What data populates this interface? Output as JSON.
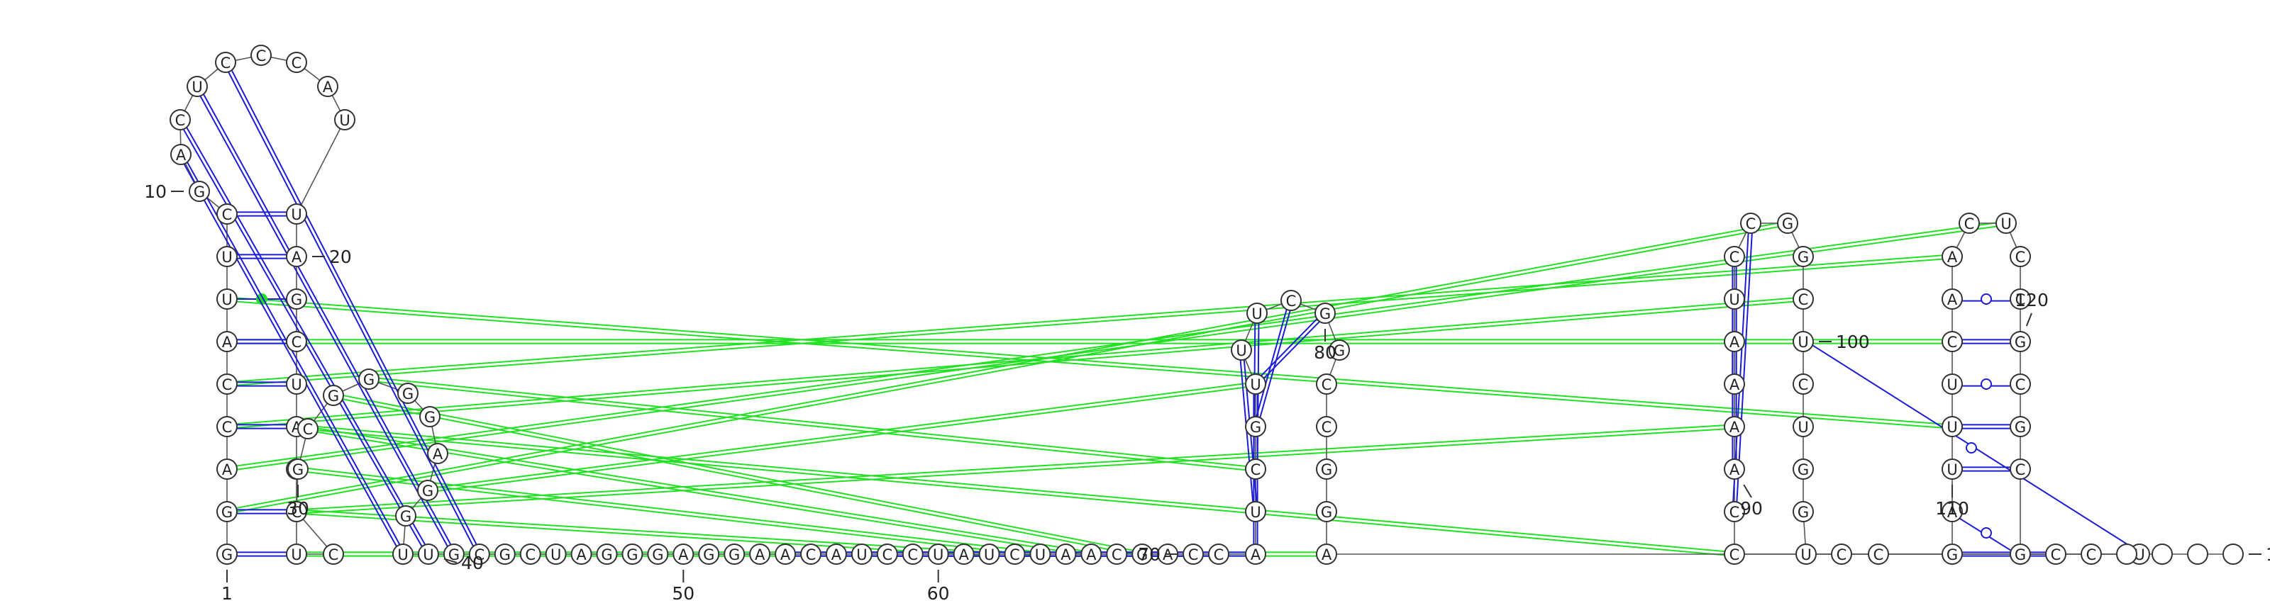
{
  "diagram": {
    "title": "RNA secondary structure arc/stem plot",
    "colors": {
      "canonical": "#1c1cd6",
      "noncanonical": "#22e022",
      "gu_dot": "#22e022",
      "backbone": "#555555"
    },
    "sequence": [
      "G",
      "G",
      "A",
      "C",
      "C",
      "A",
      "U",
      "U",
      "C",
      "G",
      "A",
      "C",
      "U",
      "C",
      "C",
      "C",
      "A",
      "U",
      "U",
      "A",
      "G",
      "C",
      "U",
      "A",
      "C",
      "C",
      "U",
      "C",
      "C",
      "G",
      "C",
      "G",
      "G",
      "G",
      "G",
      "A",
      "G",
      "G",
      "U",
      "U",
      "G",
      "C",
      "G",
      "C",
      "U",
      "A",
      "G",
      "G",
      "G",
      "A",
      "G",
      "G",
      "A",
      "A",
      "C",
      "A",
      "U",
      "C",
      "C",
      "U",
      "A",
      "U",
      "C",
      "U",
      "A",
      "A",
      "C",
      "G",
      "A",
      "C",
      "C",
      "A",
      "U",
      "C",
      "G",
      "U",
      "U",
      "U",
      "C",
      "G",
      "G",
      "C",
      "C",
      "G",
      "G",
      "A",
      "U",
      "C",
      "C",
      "A",
      "A",
      "A",
      "A",
      "U",
      "C",
      "C",
      "G",
      "G",
      "C",
      "U",
      "C",
      "U",
      "G",
      "G",
      "U",
      "C",
      "C",
      "G",
      "A",
      "U",
      "U",
      "U",
      "C",
      "A",
      "A",
      "C",
      "U",
      "C",
      "C",
      "G",
      "C",
      "G",
      "C",
      "G",
      "C",
      "C"
    ],
    "labels": [
      {
        "n": 1,
        "text": "1"
      },
      {
        "n": 10,
        "text": "10"
      },
      {
        "n": 20,
        "text": "20"
      },
      {
        "n": 30,
        "text": "30"
      },
      {
        "n": 40,
        "text": "40"
      },
      {
        "n": 50,
        "text": "50"
      },
      {
        "n": 60,
        "text": "60"
      },
      {
        "n": 70,
        "text": "70"
      },
      {
        "n": 80,
        "text": "80"
      },
      {
        "n": 90,
        "text": "90"
      },
      {
        "n": 100,
        "text": "100"
      },
      {
        "n": 110,
        "text": "110"
      },
      {
        "n": 120,
        "text": "120"
      },
      {
        "n": 130,
        "text": "130"
      }
    ],
    "pairs": [
      {
        "i": 1,
        "j": 27,
        "type": "wc"
      },
      {
        "i": 2,
        "j": 26,
        "type": "wc"
      },
      {
        "i": 4,
        "j": 24,
        "type": "wc"
      },
      {
        "i": 5,
        "j": 23,
        "type": "wc"
      },
      {
        "i": 6,
        "j": 22,
        "type": "wc"
      },
      {
        "i": 7,
        "j": 21,
        "type": "gu"
      },
      {
        "i": 8,
        "j": 20,
        "type": "wc"
      },
      {
        "i": 9,
        "j": 19,
        "type": "wc"
      },
      {
        "i": 14,
        "j": 42,
        "type": "wc"
      },
      {
        "i": 13,
        "j": 41,
        "type": "wc"
      },
      {
        "i": 12,
        "j": 40,
        "type": "wc"
      },
      {
        "i": 11,
        "j": 39,
        "type": "wc"
      },
      {
        "i": 72,
        "j": 76,
        "type": "wc"
      },
      {
        "i": 73,
        "j": 77,
        "type": "wc"
      },
      {
        "i": 74,
        "j": 78,
        "type": "wc"
      },
      {
        "i": 75,
        "j": 79,
        "type": "wc"
      },
      {
        "i": 76,
        "j": 80,
        "type": "wc"
      },
      {
        "i": 54,
        "j": 70,
        "type": "wc"
      },
      {
        "i": 55,
        "j": 71,
        "type": "wc"
      },
      {
        "i": 56,
        "j": 72,
        "type": "wc"
      },
      {
        "i": 57,
        "j": 71,
        "type": "noncanon"
      },
      {
        "i": 58,
        "j": 70,
        "type": "wc"
      },
      {
        "i": 89,
        "j": 96,
        "type": "wc"
      },
      {
        "i": 90,
        "j": 95,
        "type": "wc"
      },
      {
        "i": 91,
        "j": 94,
        "type": "wc"
      },
      {
        "i": 92,
        "j": 93,
        "type": "wc"
      },
      {
        "i": 87,
        "j": 100,
        "type": "noncanon"
      },
      {
        "i": 108,
        "j": 125,
        "type": "wc"
      },
      {
        "i": 109,
        "j": 124,
        "type": "noncanon"
      },
      {
        "i": 110,
        "j": 123,
        "type": "wc"
      },
      {
        "i": 111,
        "j": 122,
        "type": "wc"
      },
      {
        "i": 112,
        "j": 121,
        "type": "noncanon"
      },
      {
        "i": 113,
        "j": 120,
        "type": "wc"
      },
      {
        "i": 114,
        "j": 119,
        "type": "noncanon"
      },
      {
        "i": 3,
        "j": 117,
        "type": "tert"
      },
      {
        "i": 5,
        "j": 115,
        "type": "tert"
      },
      {
        "i": 6,
        "j": 113,
        "type": "tert"
      },
      {
        "i": 7,
        "j": 111,
        "type": "tert"
      },
      {
        "i": 4,
        "j": 99,
        "type": "tert"
      },
      {
        "i": 2,
        "j": 97,
        "type": "tert"
      },
      {
        "i": 26,
        "j": 91,
        "type": "tert"
      },
      {
        "i": 24,
        "j": 88,
        "type": "tert"
      },
      {
        "i": 27,
        "j": 86,
        "type": "tert"
      },
      {
        "i": 28,
        "j": 60,
        "type": "tert"
      },
      {
        "i": 29,
        "j": 62,
        "type": "tert"
      },
      {
        "i": 30,
        "j": 64,
        "type": "tert"
      },
      {
        "i": 31,
        "j": 66,
        "type": "tert"
      },
      {
        "i": 32,
        "j": 68,
        "type": "tert"
      },
      {
        "i": 33,
        "j": 74,
        "type": "tert"
      },
      {
        "i": 37,
        "j": 76,
        "type": "tert"
      }
    ]
  }
}
